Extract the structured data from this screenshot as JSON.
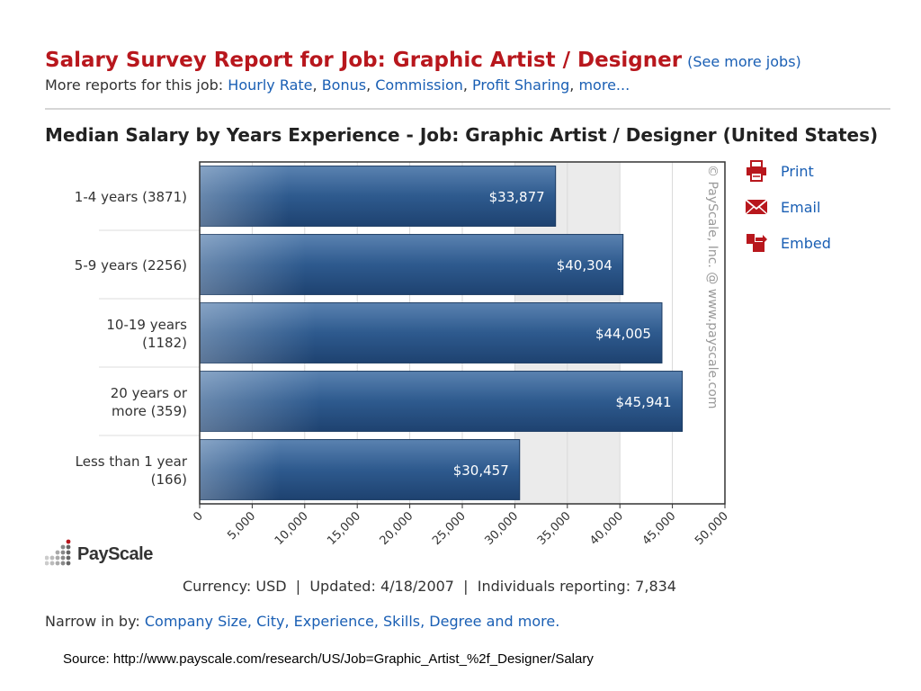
{
  "header": {
    "title": "Salary Survey Report for Job: Graphic Artist / Designer",
    "see_more": "(See more jobs)",
    "more_reports_prefix": "More reports for this job:",
    "more_reports_links": [
      "Hourly Rate",
      "Bonus",
      "Commission",
      "Profit Sharing",
      "more..."
    ]
  },
  "chart_title": "Median Salary by Years Experience - Job: Graphic Artist / Designer (United States)",
  "chart_data": {
    "type": "bar",
    "orientation": "horizontal",
    "categories": [
      [
        "1-4 years (3871)"
      ],
      [
        "5-9 years (2256)"
      ],
      [
        "10-19 years",
        "(1182)"
      ],
      [
        "20 years or",
        "more (359)"
      ],
      [
        "Less than 1 year",
        "(166)"
      ]
    ],
    "values": [
      33877,
      40304,
      44005,
      45941,
      30457
    ],
    "value_labels": [
      "$33,877",
      "$40,304",
      "$44,005",
      "$45,941",
      "$30,457"
    ],
    "xlim": [
      0,
      50000
    ],
    "xticks": [
      0,
      5000,
      10000,
      15000,
      20000,
      25000,
      30000,
      35000,
      40000,
      45000,
      50000
    ],
    "xtick_labels": [
      "0",
      "5,000",
      "10,000",
      "15,000",
      "20,000",
      "25,000",
      "30,000",
      "35,000",
      "40,000",
      "45,000",
      "50,000"
    ],
    "shaded_band": [
      30000,
      40000
    ],
    "watermark": "© PayScale, Inc. @ www.payscale.com",
    "grid": true,
    "colors": {
      "bar": "#2e5a8e",
      "bar_light": "#5a82b0",
      "bar_dark": "#1e4270",
      "band": "#ebebeb"
    }
  },
  "side_links": [
    {
      "label": "Print",
      "icon": "printer-icon"
    },
    {
      "label": "Email",
      "icon": "envelope-icon"
    },
    {
      "label": "Embed",
      "icon": "embed-icon"
    }
  ],
  "logo": {
    "name": "PayScale"
  },
  "footer": {
    "currency_label": "Currency:",
    "currency": "USD",
    "updated_label": "Updated:",
    "updated": "4/18/2007",
    "individuals_label": "Individuals reporting:",
    "individuals": "7,834"
  },
  "narrow": {
    "prefix": "Narrow in by:",
    "links": "Company Size, City, Experience, Skills, Degree and more."
  },
  "source": "Source: http://www.payscale.com/research/US/Job=Graphic_Artist_%2f_Designer/Salary"
}
